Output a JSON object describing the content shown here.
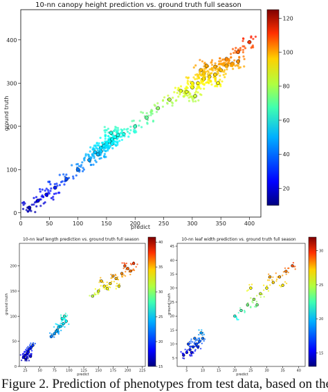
{
  "chart_data": [
    {
      "type": "scatter",
      "title": "10-nn canopy height prediction vs. ground truth full season",
      "xlabel": "predict",
      "ylabel": "ground truth",
      "xlim": [
        0,
        420
      ],
      "ylim": [
        -10,
        470
      ],
      "xticks": [
        0,
        50,
        100,
        150,
        200,
        250,
        300,
        350,
        400
      ],
      "yticks": [
        0,
        100,
        200,
        300,
        400
      ],
      "colorbar": {
        "range": [
          10,
          125
        ],
        "ticks": [
          20,
          40,
          60,
          80,
          100,
          120
        ],
        "colormap": "jet"
      },
      "grid": false,
      "series": [
        {
          "x": [
            15,
            30,
            45,
            60,
            80,
            100,
            120,
            140,
            160,
            180,
            200,
            220,
            240,
            260,
            280,
            300,
            320,
            340,
            360,
            380,
            400
          ],
          "y": [
            12,
            28,
            42,
            58,
            78,
            100,
            122,
            142,
            160,
            182,
            200,
            220,
            242,
            262,
            282,
            300,
            322,
            338,
            356,
            372,
            395
          ]
        },
        {
          "x": [
            130,
            140,
            145,
            150,
            155,
            160,
            165,
            170,
            135,
            158
          ],
          "y": [
            140,
            150,
            155,
            160,
            165,
            170,
            175,
            180,
            135,
            185
          ]
        },
        {
          "x": [
            300,
            310,
            320,
            330,
            340,
            350,
            360,
            370,
            380,
            315,
            345,
            325,
            290,
            305
          ],
          "y": [
            290,
            300,
            310,
            315,
            320,
            330,
            340,
            345,
            350,
            330,
            300,
            340,
            280,
            270
          ]
        }
      ]
    },
    {
      "type": "scatter",
      "title": "10-nn leaf length prediction vs. ground truth full season",
      "xlabel": "predict",
      "ylabel": "ground truth",
      "xlim": [
        15,
        230
      ],
      "ylim": [
        0,
        245
      ],
      "xticks": [
        25,
        50,
        75,
        100,
        125,
        150,
        175,
        200,
        225
      ],
      "yticks": [
        0,
        50,
        100,
        150,
        200
      ],
      "colorbar": {
        "range": [
          15,
          41
        ],
        "ticks": [
          15,
          20,
          25,
          30,
          35,
          40
        ],
        "colormap": "jet"
      },
      "grid": false,
      "series": [
        {
          "x": [
            22,
            25,
            28,
            30,
            32,
            35,
            38,
            26,
            30,
            34
          ],
          "y": [
            18,
            22,
            25,
            30,
            35,
            38,
            42,
            15,
            28,
            20
          ]
        },
        {
          "x": [
            70,
            75,
            80,
            85,
            90,
            95,
            78,
            88,
            82,
            92
          ],
          "y": [
            60,
            65,
            72,
            80,
            85,
            90,
            70,
            95,
            78,
            100
          ]
        },
        {
          "x": [
            140,
            150,
            160,
            170,
            180,
            190,
            200,
            210,
            155,
            175,
            185,
            165,
            195,
            205
          ],
          "y": [
            140,
            150,
            160,
            165,
            175,
            185,
            195,
            205,
            170,
            180,
            160,
            155,
            200,
            190
          ]
        }
      ]
    },
    {
      "type": "scatter",
      "title": "10-nn leaf width prediction vs. ground truth full season",
      "xlabel": "predict",
      "ylabel": "ground truth",
      "xlim": [
        2,
        42
      ],
      "ylim": [
        2,
        46
      ],
      "xticks": [
        5,
        10,
        15,
        20,
        25,
        30,
        35,
        40
      ],
      "yticks": [
        5,
        10,
        15,
        20,
        25,
        30,
        35,
        40,
        45
      ],
      "colorbar": {
        "range": [
          13,
          32
        ],
        "ticks": [
          15,
          20,
          25,
          30
        ],
        "colormap": "jet"
      },
      "grid": false,
      "series": [
        {
          "x": [
            4,
            5,
            6,
            7,
            8,
            9,
            10,
            5.5,
            7.5,
            9.5,
            6.5,
            8.5
          ],
          "y": [
            6,
            7,
            8,
            9,
            10,
            11,
            12,
            10,
            12,
            14,
            7,
            9
          ]
        },
        {
          "x": [
            20,
            22,
            24,
            26,
            28,
            30,
            32,
            34,
            36,
            38,
            25,
            27,
            31,
            35
          ],
          "y": [
            20,
            22,
            24,
            26,
            28,
            30,
            32,
            34,
            36,
            38,
            30,
            24,
            34,
            31
          ]
        }
      ]
    }
  ],
  "caption": "Figure 2. Prediction of phenotypes from test data, based on the"
}
